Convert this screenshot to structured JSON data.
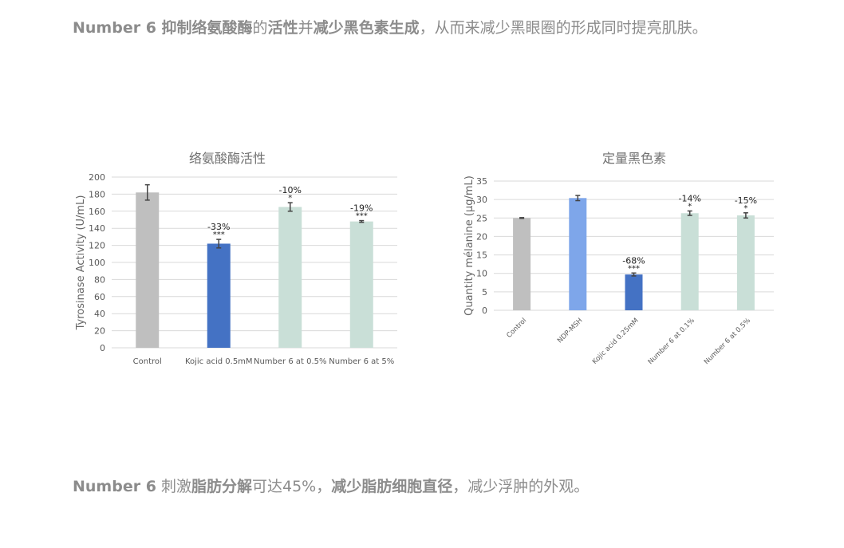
{
  "paragraphs": [
    [
      {
        "text": "Number 6 抑制络氨酸酶",
        "bold": true
      },
      {
        "text": "的",
        "bold": false
      },
      {
        "text": "活性",
        "bold": true
      },
      {
        "text": "并",
        "bold": false
      },
      {
        "text": "减少黑色素生成",
        "bold": true
      },
      {
        "text": "，从而来减少黑眼圈的形成同时提亮肌肤。",
        "bold": false
      }
    ],
    [
      {
        "text": "Number 6",
        "bold": true
      },
      {
        "text": " 刺激",
        "bold": false
      },
      {
        "text": "脂肪分解",
        "bold": true
      },
      {
        "text": "可达45%，",
        "bold": false
      },
      {
        "text": "减少脂肪细胞直径",
        "bold": true
      },
      {
        "text": "，减少浮肿的外观。",
        "bold": false
      }
    ]
  ],
  "chart_data": [
    {
      "type": "bar",
      "title": "络氨酸酶活性",
      "xlabel": "",
      "ylabel": "Tyrosinase Activity (U/mL)",
      "ylim": [
        0,
        200
      ],
      "yticks": [
        0,
        20,
        40,
        60,
        80,
        100,
        120,
        140,
        160,
        180,
        200
      ],
      "grid": true,
      "categories": [
        "Control",
        "Kojic acid 0.5mM",
        "Number 6 at 0.5%",
        "Number 6 at 5%"
      ],
      "values": [
        182,
        122,
        165,
        148
      ],
      "errors": [
        9,
        5,
        5,
        1
      ],
      "annotations": [
        "",
        "-33%",
        "-10%",
        "-19%"
      ],
      "significance": [
        "",
        "***",
        "*",
        "***"
      ],
      "colors": [
        "#bfbfbf",
        "#4472c4",
        "#c9dfd7",
        "#c9dfd7"
      ]
    },
    {
      "type": "bar",
      "title": "定量黑色素",
      "xlabel": "",
      "ylabel": "Quantity mélanine (µg/mL)",
      "ylim": [
        0,
        35
      ],
      "yticks": [
        0,
        5,
        10,
        15,
        20,
        25,
        30,
        35
      ],
      "grid": true,
      "categories": [
        "Control",
        "NDP-MSH",
        "Kojic acid 0.25mM",
        "Number 6 at 0.1%",
        "Number 6 at 0.5%"
      ],
      "values": [
        25.0,
        30.4,
        9.7,
        26.3,
        25.7
      ],
      "errors": [
        0.1,
        0.7,
        0.4,
        0.6,
        0.7
      ],
      "annotations": [
        "",
        "",
        "-68%",
        "-14%",
        "-15%"
      ],
      "significance": [
        "",
        "",
        "***",
        "*",
        "*"
      ],
      "colors": [
        "#bfbfbf",
        "#7ea6ea",
        "#4472c4",
        "#c9dfd7",
        "#c9dfd7"
      ]
    }
  ]
}
